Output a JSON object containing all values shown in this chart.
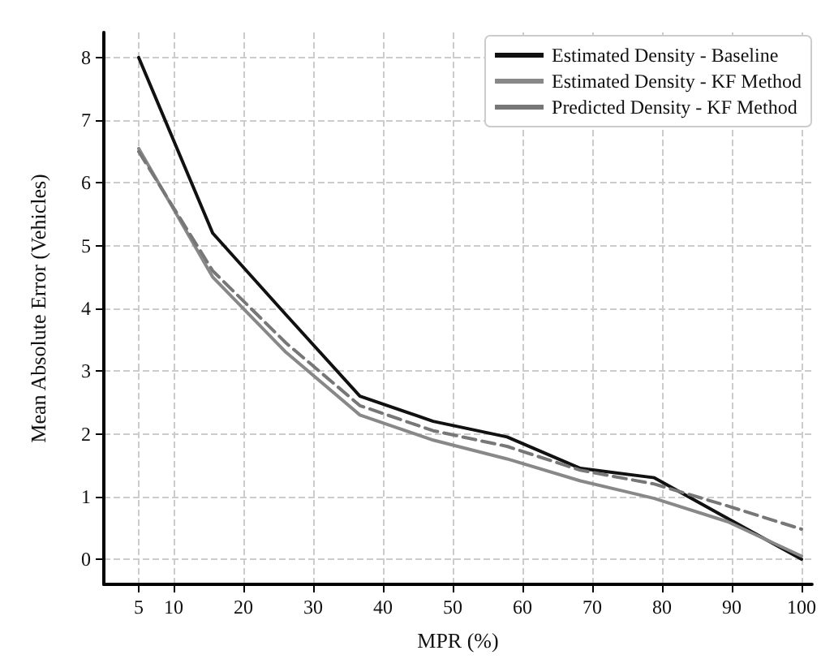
{
  "chart_data": {
    "type": "line",
    "xlabel": "MPR (%)",
    "ylabel": "Mean Absolute Error (Vehicles)",
    "xlim": [
      0,
      101.5
    ],
    "xticks": [
      5,
      10,
      20,
      30,
      40,
      50,
      60,
      70,
      80,
      90,
      100
    ],
    "ylim": [
      -0.4,
      8.4
    ],
    "yticks": [
      0,
      1,
      2,
      3,
      4,
      5,
      6,
      7,
      8
    ],
    "grid": true,
    "legend": "top right",
    "marker": "none",
    "x": [
      5,
      15.6,
      26.1,
      36.7,
      47.2,
      57.8,
      68.3,
      78.9,
      89.4,
      100
    ],
    "series": [
      {
        "name": "Estimated Density - Baseline",
        "color": "#111111",
        "line_style": "solid",
        "values": [
          8,
          5.2,
          3.9,
          2.6,
          2.2,
          1.95,
          1.45,
          1.3,
          0.65,
          0
        ]
      },
      {
        "name": "Estimated Density - KF Method",
        "color": "#888888",
        "line_style": "solid",
        "values": [
          6.55,
          4.5,
          3.3,
          2.3,
          1.9,
          1.6,
          1.25,
          0.97,
          0.6,
          0.05
        ]
      },
      {
        "name": "Predicted Density - KF Method",
        "color": "#777777",
        "line_style": "dashed",
        "values": [
          6.5,
          4.6,
          3.45,
          2.45,
          2.05,
          1.8,
          1.42,
          1.2,
          0.85,
          0.48
        ]
      }
    ]
  }
}
